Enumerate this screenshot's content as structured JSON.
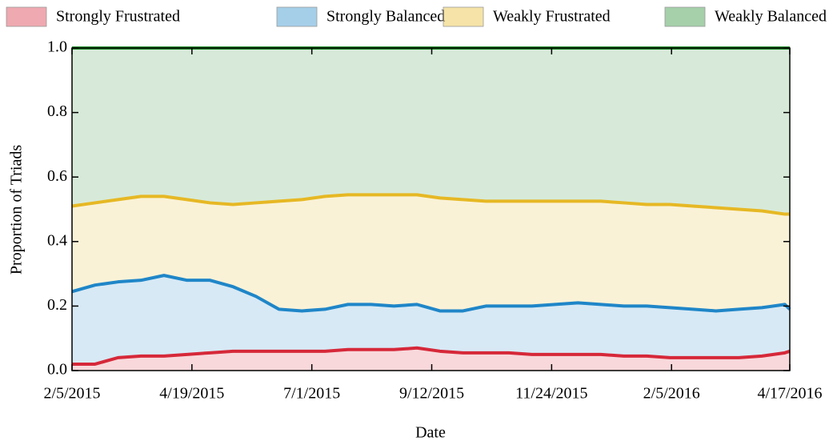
{
  "chart_data": {
    "type": "stacked_area",
    "x_label": "Date",
    "y_label": "Proportion of Triads",
    "x": [
      "2/5/2015",
      "2/19/2015",
      "3/5/2015",
      "3/19/2015",
      "4/2/2015",
      "4/16/2015",
      "4/30/2015",
      "5/14/2015",
      "5/28/2015",
      "6/11/2015",
      "6/25/2015",
      "7/9/2015",
      "7/23/2015",
      "8/6/2015",
      "8/20/2015",
      "9/3/2015",
      "9/17/2015",
      "10/1/2015",
      "10/15/2015",
      "10/29/2015",
      "11/12/2015",
      "11/26/2015",
      "12/10/2015",
      "12/24/2015",
      "1/7/2016",
      "1/21/2016",
      "2/4/2016",
      "2/18/2016",
      "3/3/2016",
      "3/17/2016",
      "3/31/2016",
      "4/14/2016",
      "4/17/2016"
    ],
    "xlim": [
      "2/5/2015",
      "4/17/2016"
    ],
    "xticks": [
      "2/5/2015",
      "4/19/2015",
      "7/1/2015",
      "9/12/2015",
      "11/24/2015",
      "2/5/2016",
      "4/17/2016"
    ],
    "ylim": [
      0,
      1
    ],
    "yticks": [
      {
        "value": 0,
        "label": "0.0"
      },
      0.2,
      0.4,
      0.6,
      0.8,
      {
        "value": 1,
        "label": "1.0"
      }
    ],
    "series": [
      {
        "name": "Strongly Frustrated",
        "color": "#d62839",
        "values": [
          0.02,
          0.02,
          0.04,
          0.045,
          0.045,
          0.05,
          0.055,
          0.06,
          0.06,
          0.06,
          0.06,
          0.06,
          0.065,
          0.065,
          0.065,
          0.07,
          0.06,
          0.055,
          0.055,
          0.055,
          0.05,
          0.05,
          0.05,
          0.05,
          0.045,
          0.045,
          0.04,
          0.04,
          0.04,
          0.04,
          0.045,
          0.055,
          0.06
        ]
      },
      {
        "name": "Strongly Balanced",
        "color": "#1f86c8",
        "values": [
          0.225,
          0.245,
          0.235,
          0.235,
          0.25,
          0.23,
          0.225,
          0.2,
          0.17,
          0.13,
          0.125,
          0.13,
          0.14,
          0.14,
          0.135,
          0.135,
          0.125,
          0.13,
          0.145,
          0.145,
          0.15,
          0.155,
          0.16,
          0.155,
          0.155,
          0.155,
          0.155,
          0.15,
          0.145,
          0.15,
          0.15,
          0.15,
          0.13
        ]
      },
      {
        "name": "Weakly Frustrated",
        "color": "#e6b824",
        "values": [
          0.265,
          0.255,
          0.255,
          0.26,
          0.245,
          0.25,
          0.24,
          0.255,
          0.29,
          0.335,
          0.345,
          0.35,
          0.34,
          0.34,
          0.345,
          0.34,
          0.35,
          0.345,
          0.325,
          0.325,
          0.325,
          0.32,
          0.315,
          0.32,
          0.32,
          0.315,
          0.32,
          0.32,
          0.32,
          0.31,
          0.3,
          0.28,
          0.295
        ]
      },
      {
        "name": "Weakly Balanced",
        "color": "#1f8a2a",
        "values": [
          0.49,
          0.48,
          0.47,
          0.46,
          0.46,
          0.47,
          0.48,
          0.485,
          0.48,
          0.475,
          0.47,
          0.46,
          0.455,
          0.455,
          0.455,
          0.455,
          0.465,
          0.47,
          0.475,
          0.475,
          0.475,
          0.475,
          0.475,
          0.475,
          0.48,
          0.485,
          0.485,
          0.49,
          0.495,
          0.5,
          0.505,
          0.515,
          0.515
        ]
      }
    ],
    "legend": "top"
  }
}
